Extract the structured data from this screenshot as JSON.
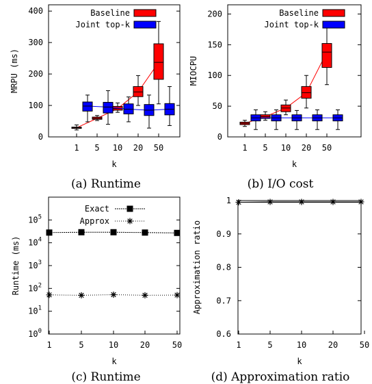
{
  "captions": [
    "(a) Runtime",
    "(b) I/O cost",
    "(c) Runtime",
    "(d) Approximation ratio"
  ],
  "colors": {
    "baseline": "#ff0000",
    "joint": "#0000ff",
    "line": "#000000"
  },
  "chart_data": [
    {
      "type": "box",
      "caption": "(a) Runtime",
      "xlabel": "k",
      "ylabel": "MRPU (ms)",
      "categories": [
        "1",
        "5",
        "10",
        "20",
        "50"
      ],
      "ylim": [
        0,
        420
      ],
      "yticks": [
        0,
        100,
        200,
        300,
        400
      ],
      "legend": {
        "position": "top-right",
        "entries": [
          "Baseline",
          "Joint top-k"
        ]
      },
      "series": [
        {
          "name": "Baseline",
          "color": "#ff0000",
          "connect": "median",
          "boxes": [
            {
              "min": 22,
              "q1": 27,
              "median": 29,
              "q3": 31,
              "max": 38
            },
            {
              "min": 52,
              "q1": 56,
              "median": 59,
              "q3": 63,
              "max": 68
            },
            {
              "min": 78,
              "q1": 85,
              "median": 90,
              "q3": 97,
              "max": 108
            },
            {
              "min": 100,
              "q1": 128,
              "median": 143,
              "q3": 160,
              "max": 195
            },
            {
              "min": 105,
              "q1": 183,
              "median": 237,
              "q3": 296,
              "max": 367
            }
          ]
        },
        {
          "name": "Joint top-k",
          "color": "#0000ff",
          "connect": "median",
          "boxes": [
            {
              "min": 48,
              "q1": 82,
              "median": 98,
              "q3": 111,
              "max": 133
            },
            {
              "min": 40,
              "q1": 76,
              "median": 95,
              "q3": 110,
              "max": 147
            },
            {
              "min": 48,
              "q1": 73,
              "median": 88,
              "q3": 105,
              "max": 127
            },
            {
              "min": 28,
              "q1": 68,
              "median": 85,
              "q3": 103,
              "max": 133
            },
            {
              "min": 36,
              "q1": 70,
              "median": 88,
              "q3": 106,
              "max": 160
            }
          ]
        }
      ]
    },
    {
      "type": "box",
      "caption": "(b) I/O cost",
      "xlabel": "k",
      "ylabel": "MIOCPU",
      "categories": [
        "1",
        "5",
        "10",
        "20",
        "50"
      ],
      "ylim": [
        0,
        215
      ],
      "yticks": [
        0,
        50,
        100,
        150,
        200
      ],
      "legend": {
        "position": "top-right",
        "entries": [
          "Baseline",
          "Joint top-k"
        ]
      },
      "series": [
        {
          "name": "Baseline",
          "color": "#ff0000",
          "connect": "median",
          "boxes": [
            {
              "min": 17,
              "q1": 20,
              "median": 22,
              "q3": 24,
              "max": 27
            },
            {
              "min": 27,
              "q1": 30,
              "median": 33,
              "q3": 36,
              "max": 41
            },
            {
              "min": 36,
              "q1": 41,
              "median": 47,
              "q3": 52,
              "max": 60
            },
            {
              "min": 47,
              "q1": 63,
              "median": 72,
              "q3": 82,
              "max": 100
            },
            {
              "min": 85,
              "q1": 113,
              "median": 138,
              "q3": 152,
              "max": 180
            }
          ]
        },
        {
          "name": "Joint top-k",
          "color": "#0000ff",
          "connect": "median",
          "boxes": [
            {
              "min": 12,
              "q1": 26,
              "median": 31,
              "q3": 36,
              "max": 44
            },
            {
              "min": 12,
              "q1": 26,
              "median": 31,
              "q3": 36,
              "max": 44
            },
            {
              "min": 12,
              "q1": 26,
              "median": 31,
              "q3": 36,
              "max": 43
            },
            {
              "min": 12,
              "q1": 26,
              "median": 31,
              "q3": 36,
              "max": 44
            },
            {
              "min": 12,
              "q1": 26,
              "median": 31,
              "q3": 36,
              "max": 44
            }
          ]
        }
      ]
    },
    {
      "type": "line",
      "caption": "(c) Runtime",
      "xlabel": "k",
      "ylabel": "Runtime (ms)",
      "x": [
        "1",
        "5",
        "10",
        "20",
        "50"
      ],
      "yscale": "log",
      "ylim": [
        1,
        1000000
      ],
      "yticks": [
        "10^0",
        "10^1",
        "10^2",
        "10^3",
        "10^4",
        "10^5"
      ],
      "legend": {
        "position": "top-center",
        "entries": [
          "Exact",
          "Approx"
        ]
      },
      "series": [
        {
          "name": "Exact",
          "marker": "filled-square",
          "values": [
            28000,
            29000,
            29000,
            28000,
            27000
          ]
        },
        {
          "name": "Approx",
          "marker": "asterisk",
          "values": [
            52,
            50,
            53,
            50,
            51
          ]
        }
      ]
    },
    {
      "type": "line",
      "caption": "(d) Approximation ratio",
      "xlabel": "k",
      "ylabel": "Approximation ratio",
      "x": [
        "1",
        "5",
        "10",
        "20",
        "50"
      ],
      "ylim": [
        0.6,
        1.0
      ],
      "yticks": [
        "0.6",
        "0.7",
        "0.8",
        "0.9",
        "1"
      ],
      "series": [
        {
          "name": "",
          "marker": "asterisk",
          "values": [
            0.995,
            0.996,
            0.996,
            0.996,
            0.996
          ]
        }
      ]
    }
  ]
}
